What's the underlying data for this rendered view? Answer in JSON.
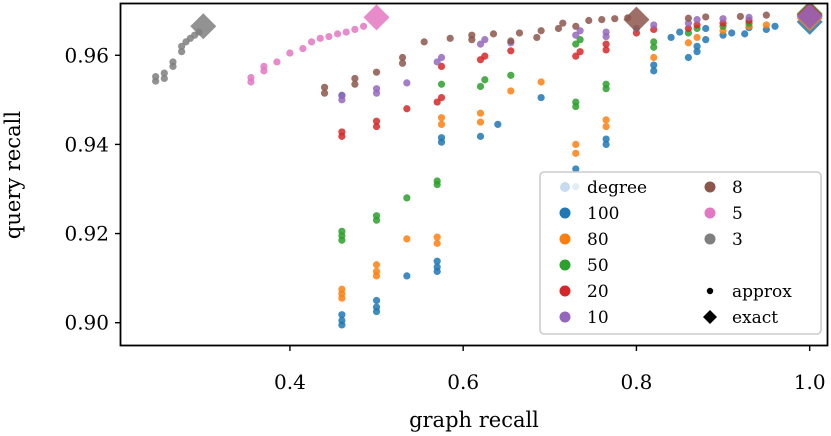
{
  "chart_data": {
    "type": "scatter",
    "title": "",
    "xlabel": "graph recall",
    "ylabel": "query recall",
    "xlim": [
      0.205,
      1.02
    ],
    "ylim": [
      0.895,
      0.9715
    ],
    "xticks": [
      0.4,
      0.6,
      0.8,
      1.0
    ],
    "xtick_labels": [
      "0.4",
      "0.6",
      "0.8",
      "1.0"
    ],
    "yticks": [
      0.9,
      0.92,
      0.94,
      0.96
    ],
    "ytick_labels": [
      "0.90",
      "0.92",
      "0.94",
      "0.96"
    ],
    "grid": false,
    "legend": {
      "placement": "lower-right",
      "title": "degree",
      "marker_titles": [
        "approx",
        "exact"
      ]
    },
    "series": [
      {
        "name": "100",
        "color": "#1f77b4",
        "approx": [
          [
            0.46,
            0.8995
          ],
          [
            0.46,
            0.9005
          ],
          [
            0.46,
            0.9018
          ],
          [
            0.46,
            0.951
          ],
          [
            0.5,
            0.9025
          ],
          [
            0.5,
            0.9035
          ],
          [
            0.5,
            0.905
          ],
          [
            0.535,
            0.9105
          ],
          [
            0.57,
            0.9115
          ],
          [
            0.57,
            0.9125
          ],
          [
            0.57,
            0.9138
          ],
          [
            0.575,
            0.9405
          ],
          [
            0.575,
            0.9415
          ],
          [
            0.62,
            0.9418
          ],
          [
            0.64,
            0.9445
          ],
          [
            0.69,
            0.9505
          ],
          [
            0.73,
            0.9305
          ],
          [
            0.73,
            0.9345
          ],
          [
            0.765,
            0.94
          ],
          [
            0.765,
            0.9412
          ],
          [
            0.82,
            0.9565
          ],
          [
            0.82,
            0.9578
          ],
          [
            0.86,
            0.9595
          ],
          [
            0.87,
            0.9608
          ],
          [
            0.87,
            0.962
          ],
          [
            0.84,
            0.964
          ],
          [
            0.85,
            0.9652
          ],
          [
            0.88,
            0.966
          ],
          [
            0.9,
            0.9645
          ],
          [
            0.91,
            0.965
          ],
          [
            0.925,
            0.9648
          ],
          [
            0.93,
            0.9662
          ],
          [
            0.95,
            0.9658
          ],
          [
            0.96,
            0.9665
          ],
          [
            0.88,
            0.9635
          ]
        ],
        "exact": [
          [
            1.0,
            0.9675
          ]
        ]
      },
      {
        "name": "80",
        "color": "#ff7f0e",
        "approx": [
          [
            0.46,
            0.9055
          ],
          [
            0.46,
            0.9065
          ],
          [
            0.46,
            0.9075
          ],
          [
            0.5,
            0.9105
          ],
          [
            0.5,
            0.9115
          ],
          [
            0.5,
            0.913
          ],
          [
            0.535,
            0.9188
          ],
          [
            0.57,
            0.9178
          ],
          [
            0.57,
            0.9192
          ],
          [
            0.575,
            0.9445
          ],
          [
            0.575,
            0.946
          ],
          [
            0.62,
            0.945
          ],
          [
            0.62,
            0.947
          ],
          [
            0.655,
            0.952
          ],
          [
            0.69,
            0.954
          ],
          [
            0.73,
            0.938
          ],
          [
            0.73,
            0.94
          ],
          [
            0.765,
            0.944
          ],
          [
            0.765,
            0.9455
          ],
          [
            0.82,
            0.9595
          ],
          [
            0.86,
            0.9628
          ],
          [
            0.87,
            0.964
          ],
          [
            0.9,
            0.9655
          ],
          [
            0.93,
            0.9665
          ],
          [
            0.95,
            0.9668
          ]
        ],
        "exact": [
          [
            1.0,
            0.9683
          ]
        ]
      },
      {
        "name": "50",
        "color": "#2ca02c",
        "approx": [
          [
            0.46,
            0.9185
          ],
          [
            0.46,
            0.9195
          ],
          [
            0.46,
            0.9205
          ],
          [
            0.5,
            0.923
          ],
          [
            0.5,
            0.924
          ],
          [
            0.535,
            0.928
          ],
          [
            0.57,
            0.931
          ],
          [
            0.57,
            0.9318
          ],
          [
            0.575,
            0.9535
          ],
          [
            0.62,
            0.953
          ],
          [
            0.625,
            0.9545
          ],
          [
            0.655,
            0.9555
          ],
          [
            0.73,
            0.9485
          ],
          [
            0.73,
            0.9495
          ],
          [
            0.73,
            0.9625
          ],
          [
            0.735,
            0.9635
          ],
          [
            0.765,
            0.9525
          ],
          [
            0.765,
            0.9535
          ],
          [
            0.82,
            0.9618
          ],
          [
            0.82,
            0.963
          ],
          [
            0.86,
            0.965
          ],
          [
            0.87,
            0.966
          ],
          [
            0.9,
            0.9665
          ],
          [
            0.93,
            0.9672
          ]
        ],
        "exact": [
          [
            1.0,
            0.9693
          ]
        ]
      },
      {
        "name": "20",
        "color": "#d62728",
        "approx": [
          [
            0.46,
            0.9418
          ],
          [
            0.46,
            0.9428
          ],
          [
            0.5,
            0.944
          ],
          [
            0.5,
            0.9452
          ],
          [
            0.535,
            0.948
          ],
          [
            0.57,
            0.9495
          ],
          [
            0.575,
            0.9505
          ],
          [
            0.575,
            0.9575
          ],
          [
            0.62,
            0.959
          ],
          [
            0.625,
            0.9598
          ],
          [
            0.655,
            0.961
          ],
          [
            0.73,
            0.9598
          ],
          [
            0.735,
            0.9608
          ],
          [
            0.765,
            0.9612
          ],
          [
            0.765,
            0.9625
          ],
          [
            0.8,
            0.965
          ],
          [
            0.82,
            0.9658
          ],
          [
            0.86,
            0.966
          ],
          [
            0.87,
            0.9668
          ],
          [
            0.9,
            0.9672
          ],
          [
            0.93,
            0.9678
          ]
        ],
        "exact": [
          [
            1.0,
            0.969
          ]
        ]
      },
      {
        "name": "10",
        "color": "#9467bd",
        "approx": [
          [
            0.46,
            0.95
          ],
          [
            0.46,
            0.951
          ],
          [
            0.5,
            0.9515
          ],
          [
            0.5,
            0.9525
          ],
          [
            0.535,
            0.9538
          ],
          [
            0.57,
            0.9585
          ],
          [
            0.575,
            0.9595
          ],
          [
            0.62,
            0.9625
          ],
          [
            0.625,
            0.9635
          ],
          [
            0.655,
            0.9628
          ],
          [
            0.73,
            0.9645
          ],
          [
            0.735,
            0.9655
          ],
          [
            0.765,
            0.9642
          ],
          [
            0.765,
            0.9652
          ],
          [
            0.8,
            0.966
          ],
          [
            0.82,
            0.9668
          ],
          [
            0.86,
            0.9672
          ],
          [
            0.87,
            0.968
          ],
          [
            0.9,
            0.9682
          ],
          [
            0.93,
            0.9685
          ]
        ],
        "exact": [
          [
            1.0,
            0.9687
          ]
        ]
      },
      {
        "name": "8",
        "color": "#8c564b",
        "approx": [
          [
            0.44,
            0.9528
          ],
          [
            0.44,
            0.9515
          ],
          [
            0.475,
            0.9548
          ],
          [
            0.475,
            0.9535
          ],
          [
            0.5,
            0.9562
          ],
          [
            0.53,
            0.9582
          ],
          [
            0.53,
            0.9595
          ],
          [
            0.555,
            0.963
          ],
          [
            0.585,
            0.9638
          ],
          [
            0.61,
            0.9645
          ],
          [
            0.61,
            0.9635
          ],
          [
            0.635,
            0.9648
          ],
          [
            0.655,
            0.9632
          ],
          [
            0.665,
            0.965
          ],
          [
            0.685,
            0.964
          ],
          [
            0.69,
            0.9655
          ],
          [
            0.71,
            0.966
          ],
          [
            0.715,
            0.9672
          ],
          [
            0.73,
            0.9665
          ],
          [
            0.745,
            0.9678
          ],
          [
            0.76,
            0.968
          ],
          [
            0.775,
            0.9682
          ],
          [
            0.79,
            0.9684
          ],
          [
            0.86,
            0.9683
          ],
          [
            0.88,
            0.9686
          ],
          [
            0.92,
            0.9687
          ],
          [
            0.95,
            0.969
          ]
        ],
        "exact": [
          [
            0.8,
            0.968
          ]
        ]
      },
      {
        "name": "5",
        "color": "#e377c2",
        "approx": [
          [
            0.355,
            0.954
          ],
          [
            0.355,
            0.955
          ],
          [
            0.37,
            0.9565
          ],
          [
            0.37,
            0.9575
          ],
          [
            0.385,
            0.9585
          ],
          [
            0.4,
            0.9605
          ],
          [
            0.415,
            0.9615
          ],
          [
            0.425,
            0.963
          ],
          [
            0.435,
            0.9638
          ],
          [
            0.445,
            0.9642
          ],
          [
            0.455,
            0.9648
          ],
          [
            0.465,
            0.9652
          ],
          [
            0.475,
            0.9658
          ],
          [
            0.485,
            0.9665
          ]
        ],
        "exact": [
          [
            0.5,
            0.9685
          ]
        ]
      },
      {
        "name": "3",
        "color": "#7f7f7f",
        "approx": [
          [
            0.245,
            0.9542
          ],
          [
            0.245,
            0.9552
          ],
          [
            0.255,
            0.9548
          ],
          [
            0.255,
            0.956
          ],
          [
            0.265,
            0.9575
          ],
          [
            0.265,
            0.9585
          ],
          [
            0.275,
            0.9608
          ],
          [
            0.275,
            0.962
          ],
          [
            0.28,
            0.963
          ],
          [
            0.285,
            0.9638
          ],
          [
            0.29,
            0.9645
          ],
          [
            0.295,
            0.9652
          ]
        ],
        "exact": [
          [
            0.3,
            0.9665
          ]
        ]
      }
    ]
  }
}
